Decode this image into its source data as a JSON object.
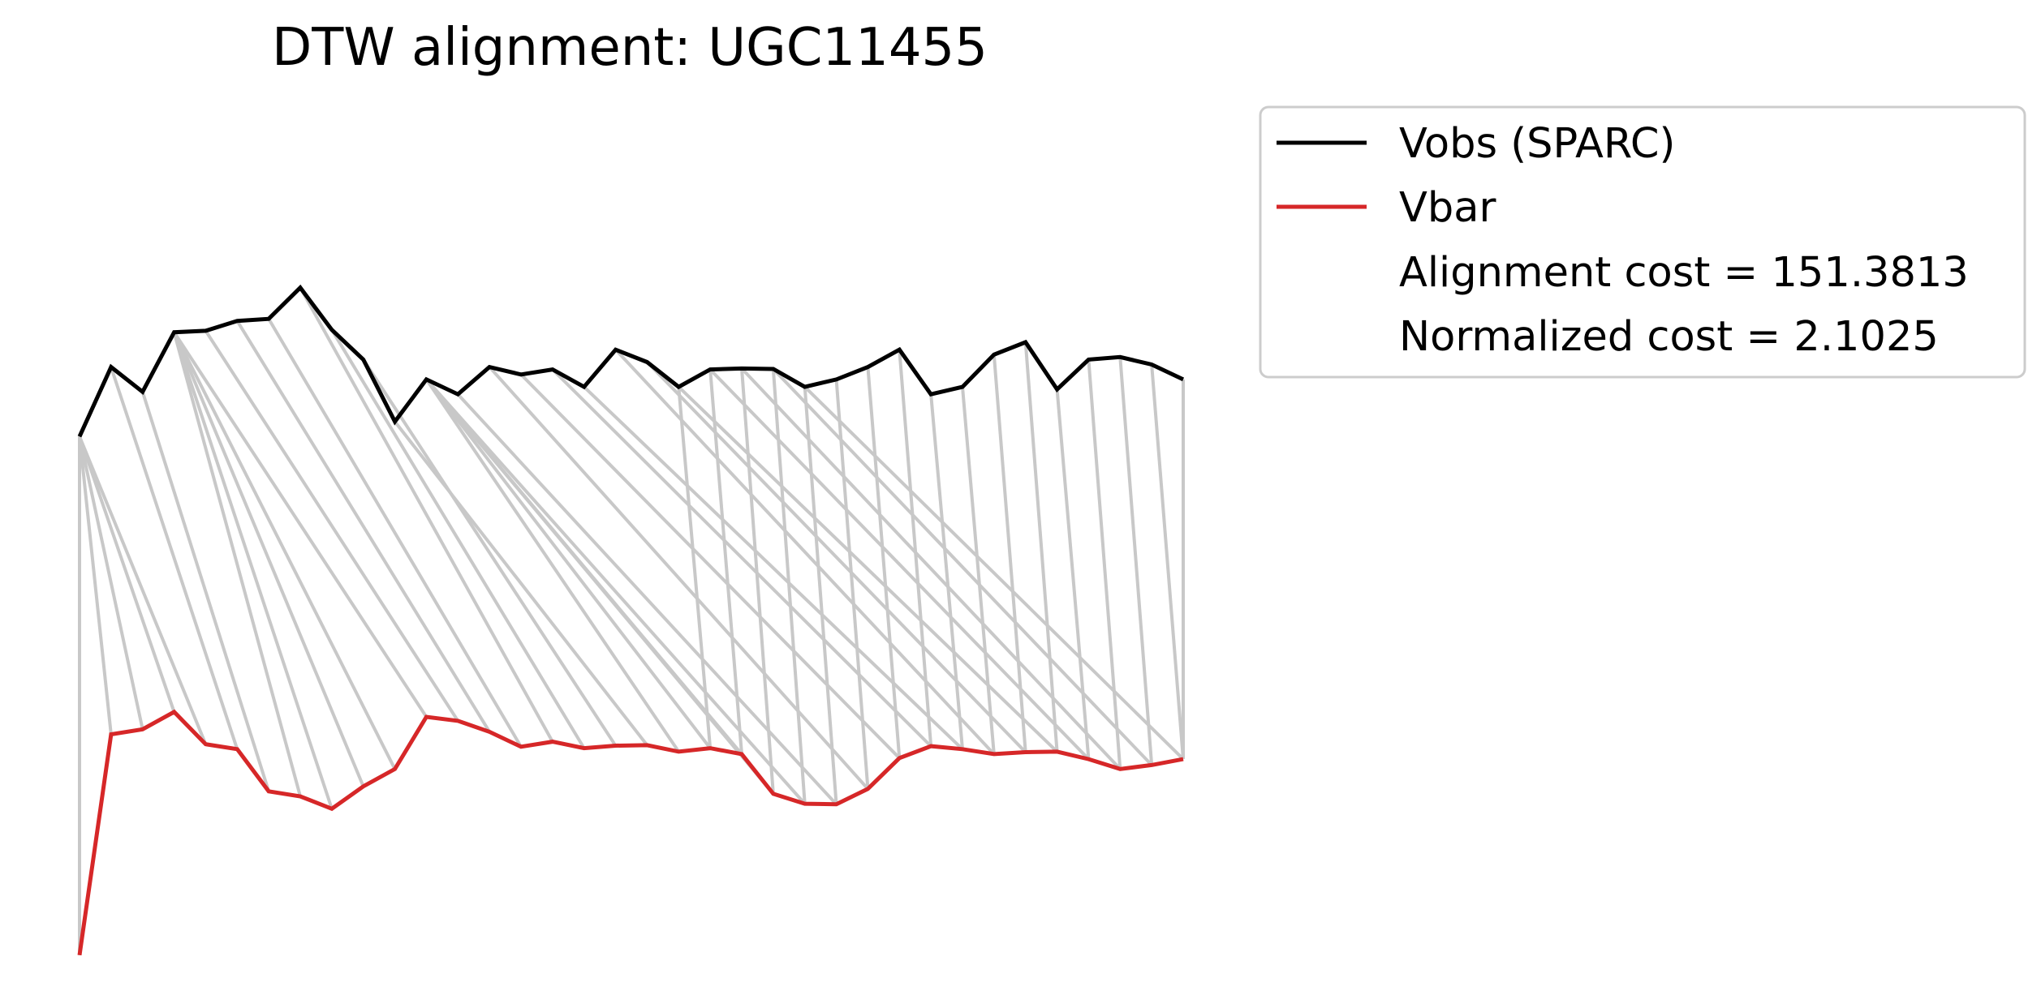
{
  "chart_data": {
    "type": "line",
    "title": "DTW alignment: UGC11455",
    "xlabel": "",
    "ylabel": "",
    "axes_visible": false,
    "grid": false,
    "legend_position": "outside-top-right",
    "colors": {
      "vobs": "#000000",
      "vbar": "#d62728",
      "alignment": "#c8c8c8"
    },
    "series": [
      {
        "name": "Vobs (SPARC)",
        "values": [
          16.45,
          17.85,
          17.35,
          18.55,
          18.58,
          18.78,
          18.82,
          19.45,
          18.6,
          18.0,
          16.75,
          17.6,
          17.3,
          17.85,
          17.7,
          17.8,
          17.45,
          18.2,
          17.95,
          17.45,
          17.8,
          17.82,
          17.81,
          17.45,
          17.6,
          17.85,
          18.2,
          17.3,
          17.45,
          18.1,
          18.35,
          17.4,
          18.0,
          18.05,
          17.9,
          17.6
        ]
      },
      {
        "name": "Vbar",
        "values": [
          6.0,
          10.45,
          10.55,
          10.9,
          10.25,
          10.15,
          9.3,
          9.2,
          8.95,
          9.4,
          9.75,
          10.8,
          10.72,
          10.5,
          10.2,
          10.3,
          10.17,
          10.22,
          10.23,
          10.1,
          10.17,
          10.05,
          9.25,
          9.05,
          9.04,
          9.35,
          9.97,
          10.21,
          10.15,
          10.05,
          10.09,
          10.1,
          9.95,
          9.75,
          9.83,
          9.95
        ]
      }
    ],
    "alignment_path": [
      [
        0,
        0
      ],
      [
        0,
        1
      ],
      [
        0,
        2
      ],
      [
        0,
        3
      ],
      [
        0,
        4
      ],
      [
        1,
        5
      ],
      [
        2,
        6
      ],
      [
        3,
        7
      ],
      [
        3,
        8
      ],
      [
        3,
        9
      ],
      [
        3,
        10
      ],
      [
        3,
        11
      ],
      [
        4,
        12
      ],
      [
        5,
        13
      ],
      [
        6,
        14
      ],
      [
        7,
        15
      ],
      [
        8,
        16
      ],
      [
        9,
        17
      ],
      [
        10,
        18
      ],
      [
        11,
        19
      ],
      [
        11,
        20
      ],
      [
        11,
        21
      ],
      [
        11,
        22
      ],
      [
        11,
        23
      ],
      [
        12,
        24
      ],
      [
        13,
        25
      ],
      [
        14,
        26
      ],
      [
        15,
        27
      ],
      [
        16,
        28
      ],
      [
        17,
        29
      ],
      [
        18,
        30
      ],
      [
        19,
        20
      ],
      [
        20,
        21
      ],
      [
        21,
        22
      ],
      [
        22,
        23
      ],
      [
        23,
        24
      ],
      [
        24,
        25
      ],
      [
        25,
        26
      ],
      [
        26,
        27
      ],
      [
        27,
        28
      ],
      [
        28,
        29
      ],
      [
        29,
        30
      ],
      [
        30,
        31
      ],
      [
        31,
        32
      ],
      [
        32,
        33
      ],
      [
        33,
        34
      ],
      [
        34,
        35
      ],
      [
        35,
        35
      ],
      [
        19,
        31
      ],
      [
        20,
        32
      ],
      [
        21,
        33
      ],
      [
        22,
        34
      ],
      [
        23,
        35
      ],
      [
        24,
        36
      ],
      [
        25,
        37
      ],
      [
        26,
        38
      ],
      [
        27,
        39
      ],
      [
        28,
        40
      ],
      [
        29,
        41
      ],
      [
        30,
        42
      ],
      [
        31,
        43
      ],
      [
        32,
        44
      ],
      [
        33,
        45
      ],
      [
        34,
        46
      ],
      [
        35,
        47
      ],
      [
        35,
        48
      ]
    ],
    "annotations": [
      "Alignment cost = 151.3813",
      "Normalized cost = 2.1025"
    ]
  }
}
